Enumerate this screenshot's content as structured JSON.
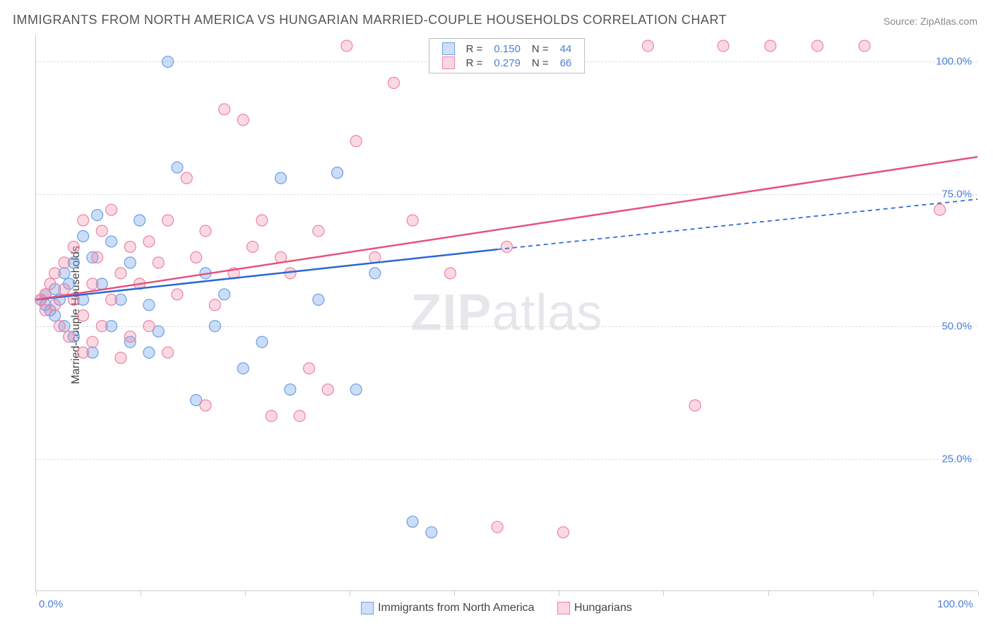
{
  "title": "IMMIGRANTS FROM NORTH AMERICA VS HUNGARIAN MARRIED-COUPLE HOUSEHOLDS CORRELATION CHART",
  "source_label": "Source:",
  "source_name": "ZipAtlas.com",
  "watermark_zip": "ZIP",
  "watermark_atlas": "atlas",
  "y_axis_title": "Married-couple Households",
  "x_origin": "0.0%",
  "x_max": "100.0%",
  "chart": {
    "type": "scatter",
    "xlim": [
      0,
      100
    ],
    "ylim": [
      0,
      105
    ],
    "y_gridlines": [
      25,
      50,
      75,
      100
    ],
    "y_labels": [
      "25.0%",
      "50.0%",
      "75.0%",
      "100.0%"
    ],
    "x_tick_positions": [
      0,
      11.1,
      22.2,
      33.3,
      44.4,
      55.5,
      66.6,
      77.7,
      88.8,
      100
    ],
    "background_color": "#ffffff",
    "grid_color": "#dddddd",
    "axis_color": "#cccccc",
    "label_color": "#4a7fd8",
    "series": [
      {
        "name": "Immigrants from North America",
        "color_fill": "rgba(107,159,232,0.35)",
        "color_stroke": "#6b9fe8",
        "swatch_fill": "#cde0f7",
        "swatch_border": "#6b9fe8",
        "r_value": "0.150",
        "n_value": "44",
        "marker_radius": 8,
        "trend_line": {
          "x1": 0,
          "y1": 55,
          "x2": 49,
          "y2": 64.5,
          "dash_x2": 100,
          "dash_y2": 74,
          "color": "#2968d6",
          "width": 2.5
        },
        "points": [
          [
            0.5,
            55
          ],
          [
            1,
            54
          ],
          [
            1,
            56
          ],
          [
            1.5,
            53
          ],
          [
            2,
            57
          ],
          [
            2,
            52
          ],
          [
            2.5,
            55
          ],
          [
            3,
            60
          ],
          [
            3,
            50
          ],
          [
            3.5,
            58
          ],
          [
            4,
            48
          ],
          [
            4,
            62
          ],
          [
            5,
            55
          ],
          [
            5,
            67
          ],
          [
            6,
            63
          ],
          [
            6,
            45
          ],
          [
            6.5,
            71
          ],
          [
            7,
            58
          ],
          [
            8,
            50
          ],
          [
            8,
            66
          ],
          [
            9,
            55
          ],
          [
            10,
            62
          ],
          [
            10,
            47
          ],
          [
            11,
            70
          ],
          [
            12,
            54
          ],
          [
            12,
            45
          ],
          [
            13,
            49
          ],
          [
            14,
            100
          ],
          [
            15,
            80
          ],
          [
            17,
            36
          ],
          [
            18,
            60
          ],
          [
            19,
            50
          ],
          [
            20,
            56
          ],
          [
            22,
            42
          ],
          [
            24,
            47
          ],
          [
            26,
            78
          ],
          [
            27,
            38
          ],
          [
            30,
            55
          ],
          [
            32,
            79
          ],
          [
            34,
            38
          ],
          [
            36,
            60
          ],
          [
            40,
            13
          ],
          [
            42,
            11
          ],
          [
            47,
            103
          ]
        ]
      },
      {
        "name": "Hungarians",
        "color_fill": "rgba(238,130,160,0.30)",
        "color_stroke": "#ee82a0",
        "swatch_fill": "#fbd8e1",
        "swatch_border": "#ee82a0",
        "r_value": "0.279",
        "n_value": "66",
        "marker_radius": 8,
        "trend_line": {
          "x1": 0,
          "y1": 55,
          "x2": 100,
          "y2": 82,
          "color": "#e6527d",
          "width": 2.5
        },
        "points": [
          [
            0.5,
            55
          ],
          [
            1,
            56
          ],
          [
            1,
            53
          ],
          [
            1.5,
            58
          ],
          [
            2,
            54
          ],
          [
            2,
            60
          ],
          [
            2.5,
            50
          ],
          [
            3,
            57
          ],
          [
            3,
            62
          ],
          [
            3.5,
            48
          ],
          [
            4,
            55
          ],
          [
            4,
            65
          ],
          [
            5,
            52
          ],
          [
            5,
            70
          ],
          [
            5,
            45
          ],
          [
            6,
            58
          ],
          [
            6,
            47
          ],
          [
            6.5,
            63
          ],
          [
            7,
            68
          ],
          [
            7,
            50
          ],
          [
            8,
            55
          ],
          [
            8,
            72
          ],
          [
            9,
            60
          ],
          [
            9,
            44
          ],
          [
            10,
            65
          ],
          [
            10,
            48
          ],
          [
            11,
            58
          ],
          [
            12,
            50
          ],
          [
            12,
            66
          ],
          [
            13,
            62
          ],
          [
            14,
            45
          ],
          [
            14,
            70
          ],
          [
            15,
            56
          ],
          [
            16,
            78
          ],
          [
            17,
            63
          ],
          [
            18,
            35
          ],
          [
            18,
            68
          ],
          [
            19,
            54
          ],
          [
            20,
            91
          ],
          [
            21,
            60
          ],
          [
            22,
            89
          ],
          [
            23,
            65
          ],
          [
            24,
            70
          ],
          [
            25,
            33
          ],
          [
            26,
            63
          ],
          [
            27,
            60
          ],
          [
            28,
            33
          ],
          [
            29,
            42
          ],
          [
            30,
            68
          ],
          [
            31,
            38
          ],
          [
            33,
            103
          ],
          [
            34,
            85
          ],
          [
            36,
            63
          ],
          [
            38,
            96
          ],
          [
            40,
            70
          ],
          [
            44,
            60
          ],
          [
            49,
            12
          ],
          [
            50,
            65
          ],
          [
            56,
            11
          ],
          [
            65,
            103
          ],
          [
            70,
            35
          ],
          [
            73,
            103
          ],
          [
            78,
            103
          ],
          [
            83,
            103
          ],
          [
            88,
            103
          ],
          [
            96,
            72
          ]
        ]
      }
    ]
  },
  "legend_bottom": [
    {
      "label": "Immigrants from North America",
      "swatch_fill": "#cde0f7",
      "swatch_border": "#6b9fe8"
    },
    {
      "label": "Hungarians",
      "swatch_fill": "#fbd8e1",
      "swatch_border": "#ee82a0"
    }
  ]
}
